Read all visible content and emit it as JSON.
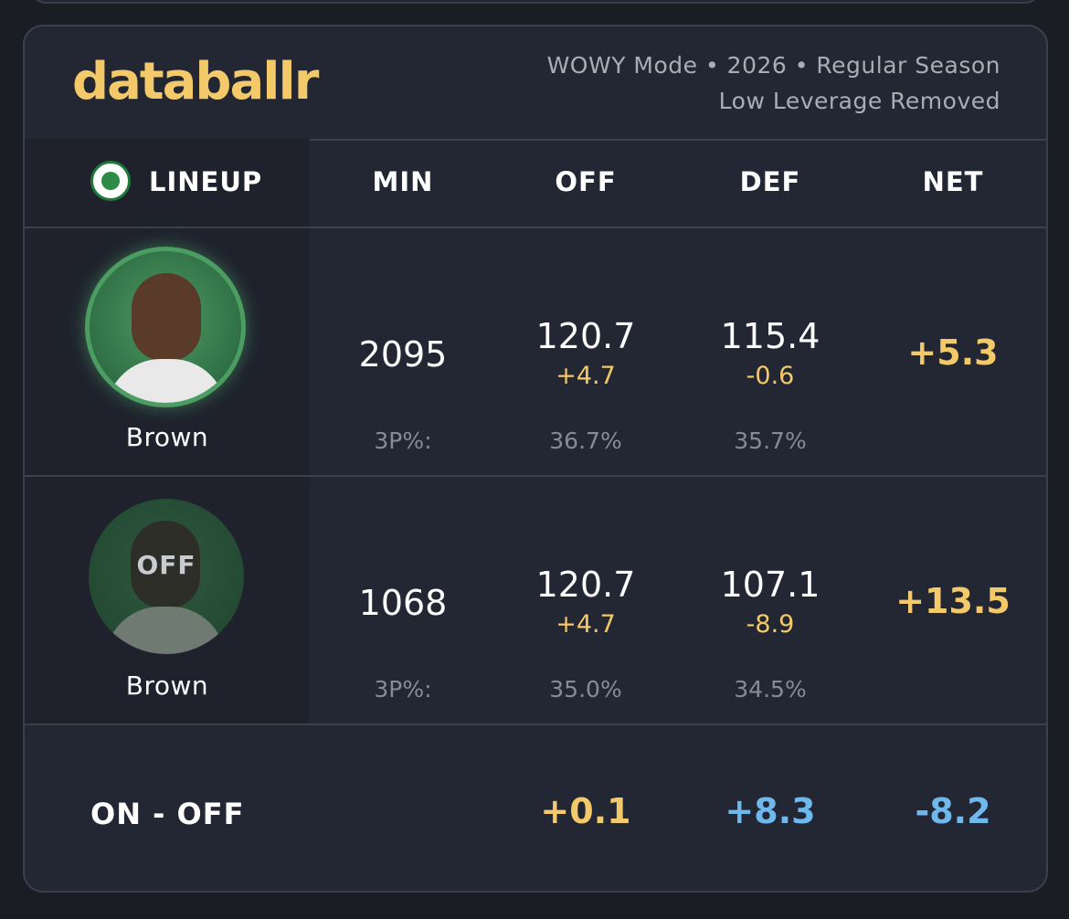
{
  "brand": {
    "logo_text": "databallr",
    "mode_line": "WOWY Mode • 2026 • Regular Season",
    "filter_line": "Low Leverage Removed"
  },
  "colors": {
    "accent_gold": "#f3c96a",
    "accent_blue": "#6fb8ee",
    "team_green": "#2e8b47",
    "card_bg": "#232734",
    "page_bg": "#1a1d24"
  },
  "header": {
    "team_icon": "celtics-logo-icon",
    "lineup": "LINEUP",
    "min": "MIN",
    "off": "OFF",
    "def": "DEF",
    "net": "NET"
  },
  "rows": [
    {
      "player": "Brown",
      "status_tag": "",
      "min": "2095",
      "off": "120.7",
      "off_delta": "+4.7",
      "def": "115.4",
      "def_delta": "-0.6",
      "net": "+5.3",
      "three_label": "3P%:",
      "three_off": "36.7%",
      "three_def": "35.7%"
    },
    {
      "player": "Brown",
      "status_tag": "OFF",
      "min": "1068",
      "off": "120.7",
      "off_delta": "+4.7",
      "def": "107.1",
      "def_delta": "-8.9",
      "net": "+13.5",
      "three_label": "3P%:",
      "three_off": "35.0%",
      "three_def": "34.5%"
    }
  ],
  "footer": {
    "label": "ON - OFF",
    "off": "+0.1",
    "def": "+8.3",
    "net": "-8.2"
  }
}
